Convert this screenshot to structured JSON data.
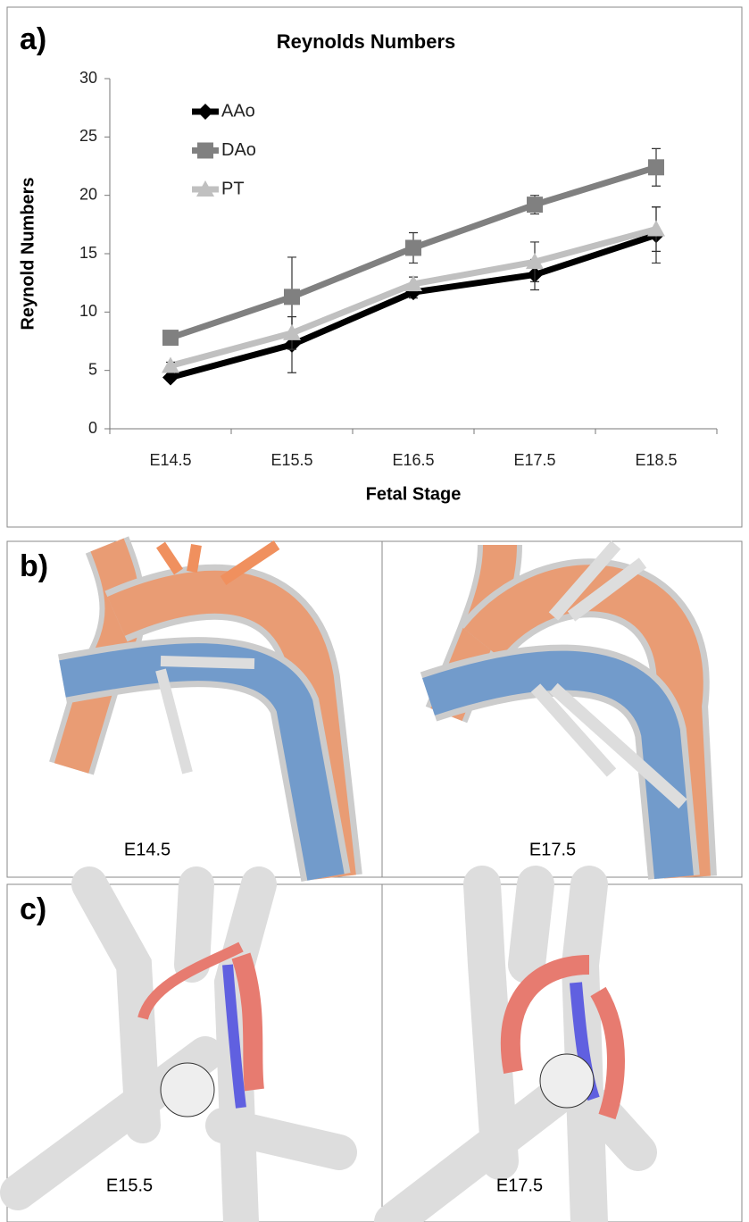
{
  "chart_data": {
    "type": "line",
    "panel_label": "a)",
    "title": "Reynolds Numbers",
    "xlabel": "Fetal Stage",
    "ylabel": "Reynold Numbers",
    "categories": [
      "E14.5",
      "E15.5",
      "E16.5",
      "E17.5",
      "E18.5"
    ],
    "series": [
      {
        "name": "AAo",
        "color": "#000000",
        "marker": "diamond",
        "values": [
          4.4,
          7.2,
          11.7,
          13.2,
          16.6
        ],
        "errors": [
          0.3,
          2.4,
          0.5,
          1.3,
          2.4
        ]
      },
      {
        "name": "DAo",
        "color": "#808080",
        "marker": "square",
        "values": [
          7.8,
          11.3,
          15.5,
          19.2,
          22.4
        ],
        "errors": [
          0.4,
          3.4,
          1.3,
          0.8,
          1.6
        ]
      },
      {
        "name": "PT",
        "color": "#c0c0c0",
        "marker": "triangle",
        "values": [
          5.4,
          8.2,
          12.4,
          14.3,
          17.1
        ],
        "errors": [
          0.3,
          1.4,
          0.6,
          1.7,
          1.9
        ]
      }
    ],
    "ylim": [
      0,
      30
    ],
    "yticks": [
      0,
      5,
      10,
      15,
      20,
      25,
      30
    ],
    "legend": "upper left"
  },
  "panels": [
    {
      "label": "b)",
      "captions": [
        "E14.5",
        "E17.5"
      ]
    },
    {
      "label": "c)",
      "captions": [
        "E15.5",
        "E17.5"
      ]
    }
  ]
}
